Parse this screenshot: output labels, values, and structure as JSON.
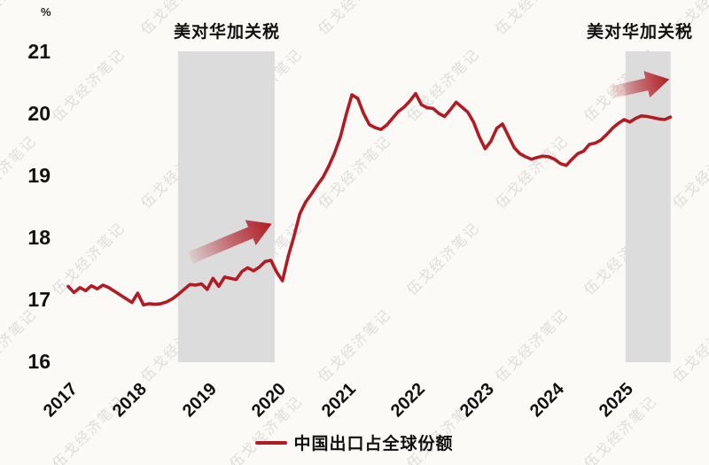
{
  "page": {
    "background": "#fbfaf7"
  },
  "watermark": {
    "text": "伍戈经济笔记",
    "color": "#e0ddda"
  },
  "titles": [
    {
      "text": "美对华加关税"
    },
    {
      "text": "美对华加关税"
    }
  ],
  "legend": {
    "label": "中国出口占全球份额",
    "marker_color": "#B01B24"
  },
  "colors": {
    "line": "#B01B24",
    "arrow": "#B01B24",
    "shading": "#dcdcdc",
    "text": "#1a1a1a"
  },
  "chart_data": {
    "type": "line",
    "title": "",
    "unit_label": "%",
    "xlabel": "",
    "ylabel": "%",
    "ylim": [
      16,
      21
    ],
    "xlim": [
      2016.9,
      2025.9
    ],
    "grid": false,
    "legend_position": "bottom",
    "yticks": [
      21,
      20,
      19,
      18,
      17,
      16
    ],
    "xticks": [
      2017,
      2018,
      2019,
      2020,
      2021,
      2022,
      2023,
      2024,
      2025
    ],
    "series": [
      {
        "name": "中国出口占全球份额",
        "color": "#B01B24",
        "x_start": 2017.0,
        "x_step_years": 0.0833333,
        "values": [
          17.21,
          17.11,
          17.19,
          17.14,
          17.22,
          17.17,
          17.23,
          17.19,
          17.13,
          17.07,
          17.01,
          16.95,
          17.1,
          16.91,
          16.93,
          16.92,
          16.93,
          16.96,
          17.01,
          17.08,
          17.16,
          17.24,
          17.23,
          17.25,
          17.16,
          17.34,
          17.21,
          17.36,
          17.34,
          17.32,
          17.45,
          17.51,
          17.46,
          17.52,
          17.61,
          17.63,
          17.44,
          17.3,
          17.7,
          18.02,
          18.38,
          18.57,
          18.7,
          18.84,
          18.97,
          19.15,
          19.36,
          19.62,
          19.98,
          20.3,
          20.24,
          20.0,
          19.82,
          19.77,
          19.74,
          19.81,
          19.92,
          20.03,
          20.1,
          20.2,
          20.32,
          20.14,
          20.09,
          20.08,
          20.0,
          19.95,
          20.06,
          20.18,
          20.1,
          20.02,
          19.86,
          19.62,
          19.43,
          19.55,
          19.76,
          19.83,
          19.64,
          19.45,
          19.35,
          19.3,
          19.26,
          19.29,
          19.31,
          19.3,
          19.26,
          19.19,
          19.16,
          19.26,
          19.35,
          19.39,
          19.5,
          19.52,
          19.57,
          19.66,
          19.76,
          19.84,
          19.9,
          19.86,
          19.92,
          19.96,
          19.95,
          19.93,
          19.91,
          19.9,
          19.94
        ]
      }
    ],
    "annotations": {
      "tariff_regions": [
        {
          "label": "美对华加关税",
          "from": 2018.58,
          "to": 2019.97
        },
        {
          "label": "美对华加关税",
          "from": 2025.02,
          "to": 2025.67
        }
      ],
      "arrows": [
        {
          "from_x": 2018.76,
          "from_y": 17.67,
          "to_x": 2019.93,
          "to_y": 18.22
        },
        {
          "from_x": 2024.82,
          "from_y": 20.34,
          "to_x": 2025.65,
          "to_y": 20.55
        }
      ]
    }
  }
}
